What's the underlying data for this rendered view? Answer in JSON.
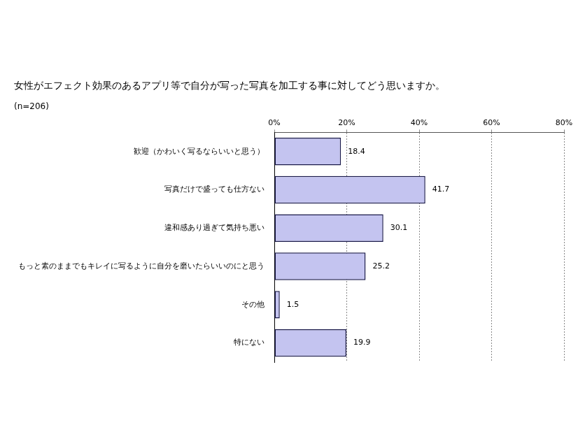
{
  "chart_data": {
    "type": "bar",
    "orientation": "horizontal",
    "title": "女性がエフェクト効果のあるアプリ等で自分が写った写真を加工する事に対してどう思いますか。",
    "subtitle": "(n=206)",
    "categories": [
      "歓迎（かわいく写るならいいと思う）",
      "写真だけで盛っても仕方ない",
      "違和感あり過ぎて気持ち悪い",
      "もっと素のままでもキレイに写るように自分を磨いたらいいのにと思う",
      "その他",
      "特にない"
    ],
    "values": [
      18.4,
      41.7,
      30.1,
      25.2,
      1.5,
      19.9
    ],
    "color": "#c4c4f0",
    "xlim": [
      0,
      80
    ],
    "xticks": [
      {
        "value": 0,
        "label": "0%"
      },
      {
        "value": 20,
        "label": "20%"
      },
      {
        "value": 40,
        "label": "40%"
      },
      {
        "value": 60,
        "label": "60%"
      },
      {
        "value": 80,
        "label": "80%"
      }
    ],
    "grid": true,
    "data_labels": true
  }
}
